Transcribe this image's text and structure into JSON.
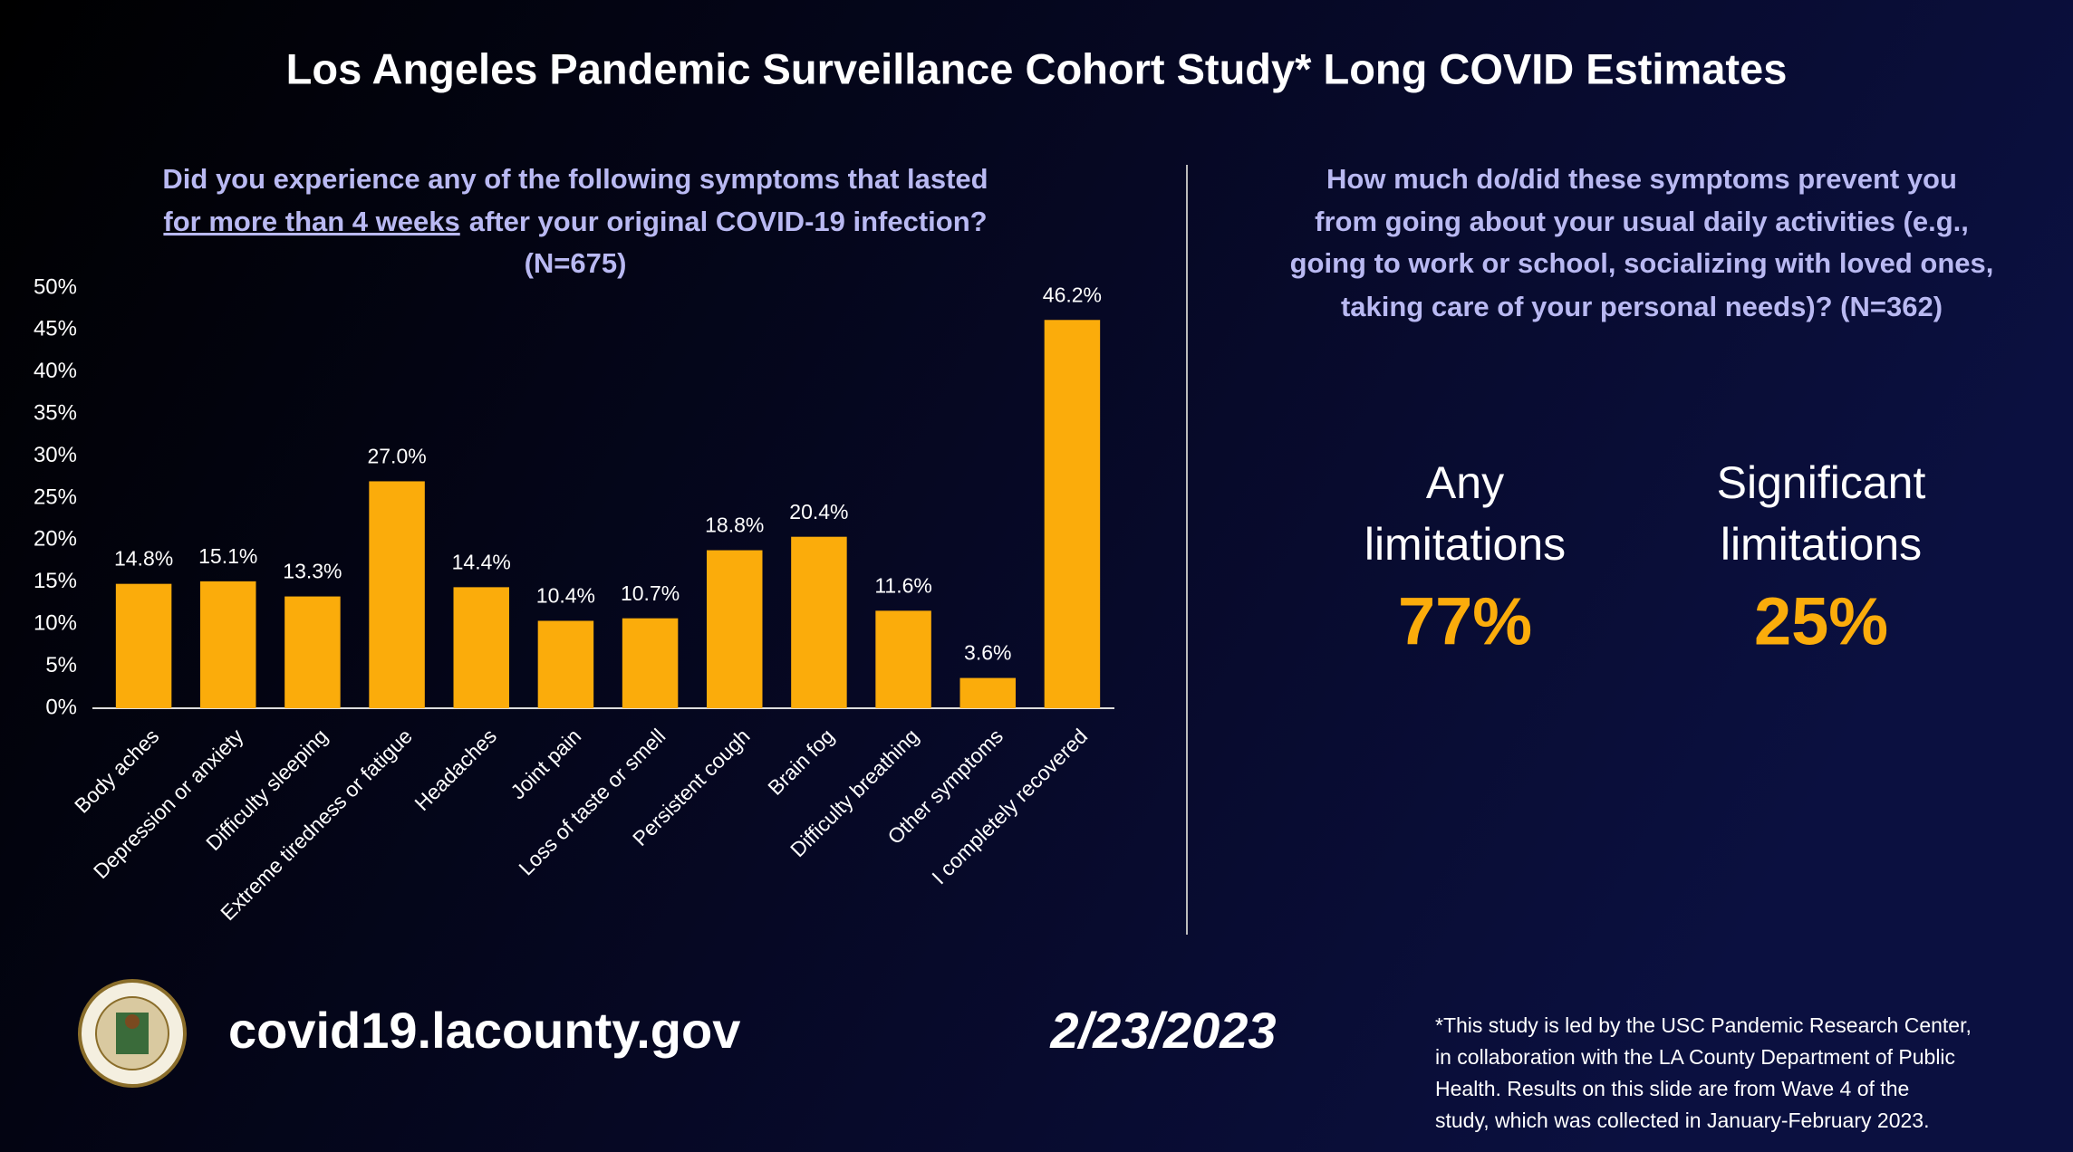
{
  "title": "Los Angeles Pandemic Surveillance Cohort Study* Long COVID Estimates",
  "left_question": [
    "Did you experience any of the following symptoms that lasted",
    "for more than 4 weeks",
    "after your original COVID-19 infection?",
    "(N=675)"
  ],
  "chart_data": {
    "type": "bar",
    "categories": [
      "Body aches",
      "Depression or anxiety",
      "Difficulty sleeping",
      "Extreme tiredness or fatigue",
      "Headaches",
      "Joint pain",
      "Loss of taste or smell",
      "Persistent cough",
      "Brain fog",
      "Difficulty breathing",
      "Other symptoms",
      "I completely recovered"
    ],
    "values": [
      14.8,
      15.1,
      13.3,
      27.0,
      14.4,
      10.4,
      10.7,
      18.8,
      20.4,
      11.6,
      3.6,
      46.2
    ],
    "value_labels": [
      "14.8%",
      "15.1%",
      "13.3%",
      "27.0%",
      "14.4%",
      "10.4%",
      "10.7%",
      "18.8%",
      "20.4%",
      "11.6%",
      "3.6%",
      "46.2%"
    ],
    "color": "#fbac0b",
    "ylim": [
      0,
      50
    ],
    "yticks": [
      {
        "value": 0,
        "label": "0%"
      },
      {
        "value": 5,
        "label": "5%"
      },
      {
        "value": 10,
        "label": "10%"
      },
      {
        "value": 15,
        "label": "15%"
      },
      {
        "value": 20,
        "label": "20%"
      },
      {
        "value": 25,
        "label": "25%"
      },
      {
        "value": 30,
        "label": "30%"
      },
      {
        "value": 35,
        "label": "35%"
      },
      {
        "value": 40,
        "label": "40%"
      },
      {
        "value": 45,
        "label": "45%"
      },
      {
        "value": 50,
        "label": "50%"
      }
    ],
    "grid": false
  },
  "right_question": [
    "How much do/did these symptoms prevent you",
    "from going about your usual daily activities (e.g.,",
    "going to work or school, socializing with loved ones,",
    "taking care of your personal needs)? (N=362)"
  ],
  "stats": [
    {
      "label": [
        "Any",
        "limitations"
      ],
      "value": "77%"
    },
    {
      "label": [
        "Significant",
        "limitations"
      ],
      "value": "25%"
    }
  ],
  "footer": {
    "url": "covid19.lacounty.gov",
    "date": "2/23/2023",
    "note": [
      "*This study is led by the USC Pandemic Research Center,",
      "in collaboration with the LA County Department of Public",
      "Health. Results on this slide are from Wave 4 of the",
      "study, which was collected in January-February 2023."
    ]
  }
}
